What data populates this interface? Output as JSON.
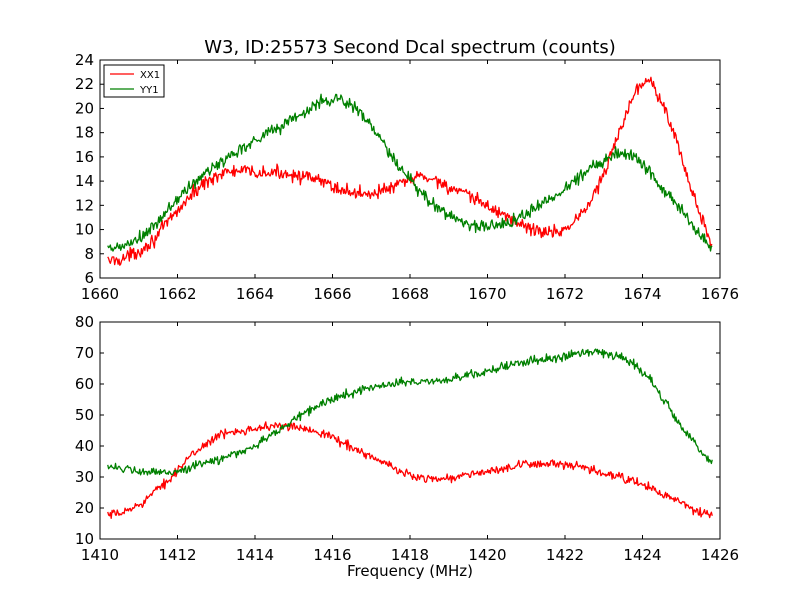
{
  "chart_data": [
    {
      "type": "line",
      "title": "W3, ID:25573 Second Dcal spectrum (counts)",
      "xlabel": "",
      "ylabel": "",
      "xlim": [
        1660,
        1676
      ],
      "ylim": [
        6,
        24
      ],
      "xticks": [
        "1660",
        "1662",
        "1664",
        "1666",
        "1668",
        "1670",
        "1672",
        "1674",
        "1676"
      ],
      "yticks": [
        "6",
        "8",
        "10",
        "12",
        "14",
        "16",
        "18",
        "20",
        "22",
        "24"
      ],
      "legend": {
        "placement": "top-left",
        "entries": [
          "XX1",
          "YY1"
        ]
      },
      "grid": false,
      "noise": 0.55,
      "series": [
        {
          "name": "XX1",
          "color": "#ff0000",
          "points": [
            [
              1660.2,
              7.4
            ],
            [
              1660.6,
              7.6
            ],
            [
              1661.0,
              8.2
            ],
            [
              1661.4,
              9.2
            ],
            [
              1661.8,
              10.8
            ],
            [
              1662.2,
              12.3
            ],
            [
              1662.6,
              13.6
            ],
            [
              1663.0,
              14.5
            ],
            [
              1663.4,
              14.8
            ],
            [
              1663.8,
              14.8
            ],
            [
              1664.2,
              14.6
            ],
            [
              1664.6,
              14.7
            ],
            [
              1665.0,
              14.6
            ],
            [
              1665.4,
              14.2
            ],
            [
              1665.8,
              13.9
            ],
            [
              1666.2,
              13.3
            ],
            [
              1666.6,
              13.0
            ],
            [
              1667.0,
              13.0
            ],
            [
              1667.4,
              13.3
            ],
            [
              1667.8,
              13.8
            ],
            [
              1668.2,
              14.4
            ],
            [
              1668.6,
              14.2
            ],
            [
              1669.0,
              13.5
            ],
            [
              1669.4,
              12.9
            ],
            [
              1669.8,
              12.3
            ],
            [
              1670.2,
              11.6
            ],
            [
              1670.6,
              10.9
            ],
            [
              1671.0,
              10.2
            ],
            [
              1671.4,
              9.8
            ],
            [
              1671.8,
              9.8
            ],
            [
              1672.2,
              10.5
            ],
            [
              1672.6,
              12.0
            ],
            [
              1673.0,
              14.5
            ],
            [
              1673.4,
              18.0
            ],
            [
              1673.8,
              21.5
            ],
            [
              1674.2,
              22.5
            ],
            [
              1674.6,
              20.0
            ],
            [
              1675.0,
              16.0
            ],
            [
              1675.4,
              12.0
            ],
            [
              1675.8,
              8.5
            ]
          ]
        },
        {
          "name": "YY1",
          "color": "#008000",
          "points": [
            [
              1660.2,
              8.3
            ],
            [
              1660.6,
              8.6
            ],
            [
              1661.0,
              9.2
            ],
            [
              1661.4,
              10.2
            ],
            [
              1661.8,
              11.8
            ],
            [
              1662.2,
              13.2
            ],
            [
              1662.6,
              14.3
            ],
            [
              1663.0,
              15.3
            ],
            [
              1663.4,
              16.2
            ],
            [
              1663.8,
              17.0
            ],
            [
              1664.2,
              17.8
            ],
            [
              1664.6,
              18.4
            ],
            [
              1665.0,
              19.2
            ],
            [
              1665.4,
              19.9
            ],
            [
              1665.8,
              20.7
            ],
            [
              1666.2,
              20.8
            ],
            [
              1666.6,
              20.0
            ],
            [
              1667.0,
              18.6
            ],
            [
              1667.4,
              16.6
            ],
            [
              1667.8,
              14.8
            ],
            [
              1668.2,
              13.3
            ],
            [
              1668.6,
              12.1
            ],
            [
              1669.0,
              11.2
            ],
            [
              1669.4,
              10.6
            ],
            [
              1669.8,
              10.2
            ],
            [
              1670.2,
              10.3
            ],
            [
              1670.6,
              10.7
            ],
            [
              1671.0,
              11.3
            ],
            [
              1671.4,
              12.1
            ],
            [
              1671.8,
              12.9
            ],
            [
              1672.2,
              13.9
            ],
            [
              1672.6,
              15.0
            ],
            [
              1673.0,
              15.8
            ],
            [
              1673.4,
              16.4
            ],
            [
              1673.8,
              16.0
            ],
            [
              1674.2,
              14.8
            ],
            [
              1674.6,
              13.2
            ],
            [
              1675.0,
              11.6
            ],
            [
              1675.4,
              9.8
            ],
            [
              1675.8,
              8.5
            ]
          ]
        }
      ]
    },
    {
      "type": "line",
      "title": "",
      "xlabel": "Frequency (MHz)",
      "ylabel": "",
      "xlim": [
        1410,
        1426
      ],
      "ylim": [
        10,
        80
      ],
      "xticks": [
        "1410",
        "1412",
        "1414",
        "1416",
        "1418",
        "1420",
        "1422",
        "1424",
        "1426"
      ],
      "yticks": [
        "10",
        "20",
        "30",
        "40",
        "50",
        "60",
        "70",
        "80"
      ],
      "grid": false,
      "noise": 1.4,
      "series": [
        {
          "name": "XX1",
          "color": "#ff0000",
          "points": [
            [
              1410.2,
              17.5
            ],
            [
              1410.6,
              18.5
            ],
            [
              1411.0,
              21.0
            ],
            [
              1411.4,
              25.0
            ],
            [
              1411.8,
              29.5
            ],
            [
              1412.2,
              35.0
            ],
            [
              1412.6,
              39.5
            ],
            [
              1413.0,
              43.0
            ],
            [
              1413.4,
              44.5
            ],
            [
              1413.8,
              45.5
            ],
            [
              1414.2,
              46.0
            ],
            [
              1414.6,
              46.5
            ],
            [
              1415.0,
              46.0
            ],
            [
              1415.4,
              45.5
            ],
            [
              1415.8,
              44.0
            ],
            [
              1416.2,
              41.5
            ],
            [
              1416.6,
              39.0
            ],
            [
              1417.0,
              36.5
            ],
            [
              1417.4,
              34.0
            ],
            [
              1417.8,
              31.5
            ],
            [
              1418.2,
              30.0
            ],
            [
              1418.6,
              29.5
            ],
            [
              1419.0,
              29.5
            ],
            [
              1419.4,
              30.5
            ],
            [
              1419.8,
              31.5
            ],
            [
              1420.2,
              32.0
            ],
            [
              1420.6,
              33.0
            ],
            [
              1421.0,
              34.0
            ],
            [
              1421.4,
              34.5
            ],
            [
              1421.8,
              34.0
            ],
            [
              1422.2,
              33.5
            ],
            [
              1422.6,
              32.5
            ],
            [
              1423.0,
              31.0
            ],
            [
              1423.4,
              30.0
            ],
            [
              1423.8,
              28.5
            ],
            [
              1424.2,
              26.5
            ],
            [
              1424.6,
              24.0
            ],
            [
              1425.0,
              21.5
            ],
            [
              1425.4,
              19.0
            ],
            [
              1425.8,
              17.5
            ]
          ]
        },
        {
          "name": "YY1",
          "color": "#008000",
          "points": [
            [
              1410.2,
              34.0
            ],
            [
              1410.6,
              32.5
            ],
            [
              1411.0,
              31.5
            ],
            [
              1411.4,
              31.5
            ],
            [
              1411.8,
              31.5
            ],
            [
              1412.2,
              32.5
            ],
            [
              1412.6,
              34.0
            ],
            [
              1413.0,
              35.5
            ],
            [
              1413.4,
              37.0
            ],
            [
              1413.8,
              39.0
            ],
            [
              1414.2,
              41.5
            ],
            [
              1414.6,
              45.0
            ],
            [
              1415.0,
              48.5
            ],
            [
              1415.4,
              51.5
            ],
            [
              1415.8,
              54.0
            ],
            [
              1416.2,
              56.0
            ],
            [
              1416.6,
              57.5
            ],
            [
              1417.0,
              59.0
            ],
            [
              1417.4,
              60.0
            ],
            [
              1417.8,
              60.5
            ],
            [
              1418.2,
              60.5
            ],
            [
              1418.6,
              61.0
            ],
            [
              1419.0,
              61.5
            ],
            [
              1419.4,
              62.5
            ],
            [
              1419.8,
              63.5
            ],
            [
              1420.2,
              65.0
            ],
            [
              1420.6,
              66.0
            ],
            [
              1421.0,
              67.0
            ],
            [
              1421.4,
              68.0
            ],
            [
              1421.8,
              68.5
            ],
            [
              1422.2,
              69.5
            ],
            [
              1422.6,
              70.5
            ],
            [
              1423.0,
              70.5
            ],
            [
              1423.4,
              69.0
            ],
            [
              1423.8,
              66.0
            ],
            [
              1424.2,
              61.5
            ],
            [
              1424.6,
              54.0
            ],
            [
              1425.0,
              46.5
            ],
            [
              1425.4,
              40.0
            ],
            [
              1425.8,
              34.5
            ]
          ]
        }
      ]
    }
  ]
}
